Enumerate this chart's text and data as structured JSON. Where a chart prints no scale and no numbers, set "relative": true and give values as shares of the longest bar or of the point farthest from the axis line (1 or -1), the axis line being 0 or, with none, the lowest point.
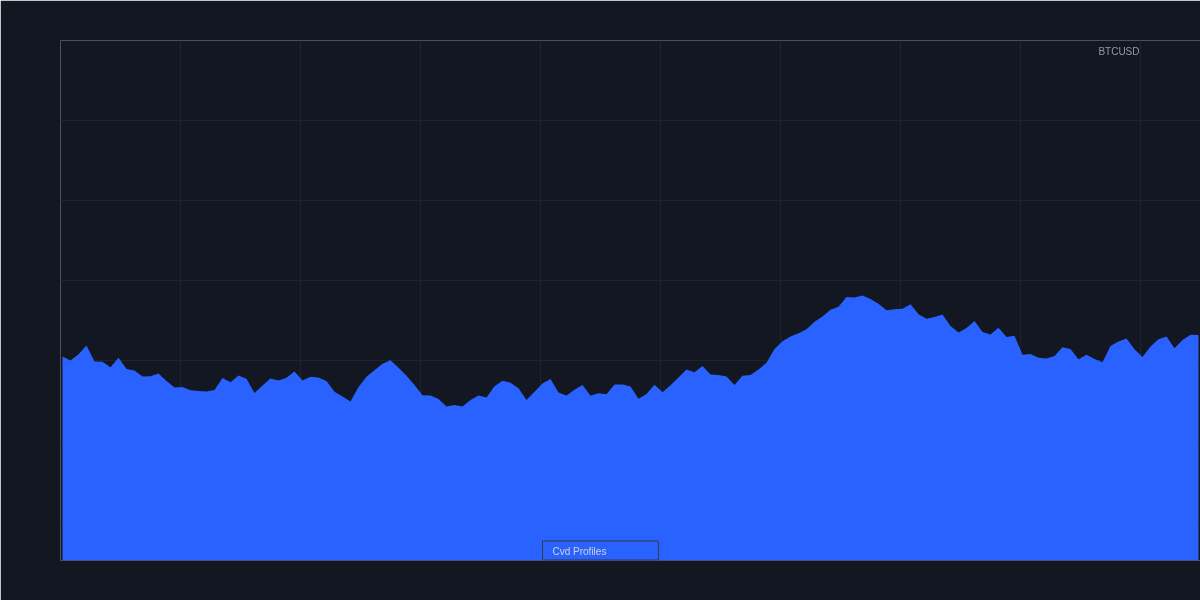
{
  "chart_data": {
    "type": "area",
    "title": "BTCUSD",
    "annotations": [
      "Cvd Profiles"
    ],
    "relative": true,
    "grid": true,
    "color": "#2962ff",
    "categories": [
      null,
      null,
      null,
      null,
      null,
      null,
      null,
      null,
      null,
      null,
      null,
      null,
      null,
      null,
      null,
      null,
      null,
      null,
      null,
      null,
      null,
      null,
      null,
      null,
      null,
      null,
      null,
      null,
      null,
      null,
      null,
      null,
      null,
      null,
      null,
      null,
      null,
      null,
      null,
      null,
      null,
      null,
      null,
      null,
      null,
      null,
      null,
      null,
      null,
      null,
      null,
      null,
      null,
      null,
      null,
      null,
      null,
      null,
      null,
      null,
      null,
      null,
      null,
      null,
      null,
      null,
      null,
      null,
      null,
      null,
      null,
      null,
      null,
      null,
      null,
      null,
      null,
      null,
      null,
      null,
      null,
      null,
      null,
      null,
      null,
      null,
      null,
      null,
      null,
      null,
      null,
      null,
      null,
      null,
      null,
      null,
      null,
      null,
      null,
      null,
      null,
      null,
      null,
      null,
      null,
      null,
      null,
      null,
      null,
      null,
      null,
      null,
      null,
      null,
      null,
      null,
      null,
      null,
      null,
      null,
      null,
      null,
      null,
      null,
      null,
      null,
      null,
      null,
      null,
      null,
      null,
      null,
      null,
      null,
      null,
      null,
      null,
      null,
      null,
      null,
      null,
      null,
      null
    ],
    "values": [
      0.77,
      0.755,
      0.778,
      0.811,
      0.751,
      0.75,
      0.729,
      0.765,
      0.723,
      0.717,
      0.694,
      0.695,
      0.706,
      0.677,
      0.653,
      0.655,
      0.642,
      0.64,
      0.638,
      0.643,
      0.689,
      0.673,
      0.698,
      0.686,
      0.632,
      0.66,
      0.687,
      0.679,
      0.69,
      0.713,
      0.679,
      0.693,
      0.691,
      0.677,
      0.637,
      0.619,
      0.6,
      0.655,
      0.693,
      0.718,
      0.742,
      0.756,
      0.727,
      0.697,
      0.662,
      0.624,
      0.623,
      0.609,
      0.581,
      0.587,
      0.581,
      0.606,
      0.623,
      0.615,
      0.658,
      0.678,
      0.671,
      0.65,
      0.606,
      0.637,
      0.668,
      0.685,
      0.634,
      0.623,
      0.644,
      0.662,
      0.622,
      0.631,
      0.627,
      0.664,
      0.664,
      0.657,
      0.61,
      0.628,
      0.663,
      0.635,
      0.661,
      0.691,
      0.721,
      0.71,
      0.734,
      0.702,
      0.7,
      0.694,
      0.662,
      0.697,
      0.7,
      0.721,
      0.746,
      0.798,
      0.827,
      0.845,
      0.858,
      0.873,
      0.901,
      0.921,
      0.946,
      0.958,
      0.994,
      0.992,
      1,
      0.987,
      0.969,
      0.944,
      0.948,
      0.95,
      0.967,
      0.929,
      0.912,
      0.919,
      0.928,
      0.885,
      0.86,
      0.877,
      0.904,
      0.862,
      0.853,
      0.878,
      0.843,
      0.848,
      0.776,
      0.779,
      0.765,
      0.762,
      0.772,
      0.805,
      0.798,
      0.759,
      0.776,
      0.76,
      0.748,
      0.809,
      0.826,
      0.838,
      0.797,
      0.768,
      0.808,
      0.835,
      0.845,
      0.801,
      0.832,
      0.852,
      0.851
    ]
  }
}
